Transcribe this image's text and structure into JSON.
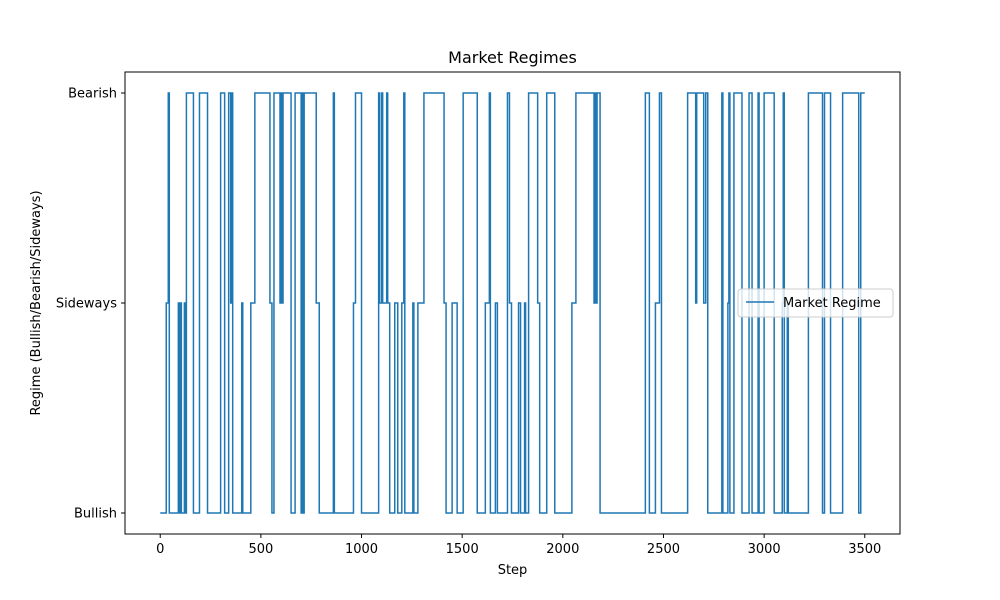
{
  "chart_data": {
    "type": "line",
    "title": "Market Regimes",
    "xlabel": "Step",
    "ylabel": "Regime (Bullish/Bearish/Sideways)",
    "xlim": [
      -175,
      3675
    ],
    "ylim": [
      -0.1,
      2.1
    ],
    "xticks": [
      0,
      500,
      1000,
      1500,
      2000,
      2500,
      3000,
      3500
    ],
    "xtick_labels": [
      "0",
      "500",
      "1000",
      "1500",
      "2000",
      "2500",
      "3000",
      "3500"
    ],
    "yticks": [
      0,
      1,
      2
    ],
    "ytick_labels": [
      "Bullish",
      "Sideways",
      "Bearish"
    ],
    "grid": false,
    "legend": {
      "position": "center-right",
      "entries": [
        "Market Regime"
      ]
    },
    "series": [
      {
        "name": "Market Regime",
        "color": "#1f77b4",
        "step_changes": [
          [
            0,
            0
          ],
          [
            30,
            1
          ],
          [
            40,
            2
          ],
          [
            45,
            0
          ],
          [
            90,
            1
          ],
          [
            95,
            0
          ],
          [
            100,
            1
          ],
          [
            105,
            0
          ],
          [
            120,
            1
          ],
          [
            125,
            0
          ],
          [
            130,
            2
          ],
          [
            165,
            0
          ],
          [
            195,
            2
          ],
          [
            235,
            0
          ],
          [
            300,
            2
          ],
          [
            320,
            0
          ],
          [
            340,
            2
          ],
          [
            350,
            1
          ],
          [
            355,
            2
          ],
          [
            360,
            0
          ],
          [
            405,
            1
          ],
          [
            410,
            0
          ],
          [
            450,
            1
          ],
          [
            470,
            2
          ],
          [
            545,
            1
          ],
          [
            555,
            0
          ],
          [
            565,
            2
          ],
          [
            595,
            1
          ],
          [
            600,
            2
          ],
          [
            605,
            1
          ],
          [
            610,
            2
          ],
          [
            650,
            0
          ],
          [
            670,
            2
          ],
          [
            700,
            0
          ],
          [
            705,
            2
          ],
          [
            710,
            0
          ],
          [
            715,
            2
          ],
          [
            775,
            1
          ],
          [
            790,
            0
          ],
          [
            860,
            2
          ],
          [
            865,
            0
          ],
          [
            960,
            1
          ],
          [
            970,
            2
          ],
          [
            1000,
            0
          ],
          [
            1085,
            2
          ],
          [
            1090,
            1
          ],
          [
            1100,
            2
          ],
          [
            1105,
            1
          ],
          [
            1125,
            2
          ],
          [
            1130,
            1
          ],
          [
            1140,
            0
          ],
          [
            1165,
            1
          ],
          [
            1180,
            0
          ],
          [
            1200,
            1
          ],
          [
            1210,
            2
          ],
          [
            1215,
            0
          ],
          [
            1255,
            1
          ],
          [
            1260,
            0
          ],
          [
            1280,
            1
          ],
          [
            1310,
            2
          ],
          [
            1410,
            1
          ],
          [
            1420,
            0
          ],
          [
            1450,
            1
          ],
          [
            1475,
            0
          ],
          [
            1505,
            2
          ],
          [
            1575,
            0
          ],
          [
            1615,
            1
          ],
          [
            1635,
            2
          ],
          [
            1640,
            0
          ],
          [
            1665,
            1
          ],
          [
            1675,
            0
          ],
          [
            1725,
            2
          ],
          [
            1735,
            1
          ],
          [
            1745,
            0
          ],
          [
            1780,
            1
          ],
          [
            1790,
            0
          ],
          [
            1810,
            1
          ],
          [
            1815,
            0
          ],
          [
            1830,
            2
          ],
          [
            1875,
            1
          ],
          [
            1885,
            0
          ],
          [
            1920,
            2
          ],
          [
            1960,
            0
          ],
          [
            2045,
            1
          ],
          [
            2065,
            2
          ],
          [
            2155,
            1
          ],
          [
            2160,
            2
          ],
          [
            2165,
            1
          ],
          [
            2170,
            2
          ],
          [
            2185,
            0
          ],
          [
            2410,
            2
          ],
          [
            2430,
            0
          ],
          [
            2460,
            1
          ],
          [
            2480,
            2
          ],
          [
            2490,
            0
          ],
          [
            2620,
            2
          ],
          [
            2660,
            1
          ],
          [
            2665,
            2
          ],
          [
            2700,
            1
          ],
          [
            2710,
            2
          ],
          [
            2720,
            0
          ],
          [
            2790,
            2
          ],
          [
            2795,
            0
          ],
          [
            2820,
            1
          ],
          [
            2825,
            2
          ],
          [
            2830,
            0
          ],
          [
            2850,
            2
          ],
          [
            2890,
            0
          ],
          [
            2925,
            2
          ],
          [
            2940,
            0
          ],
          [
            2970,
            2
          ],
          [
            2975,
            0
          ],
          [
            3000,
            2
          ],
          [
            3050,
            0
          ],
          [
            3090,
            1
          ],
          [
            3095,
            2
          ],
          [
            3100,
            0
          ],
          [
            3115,
            1
          ],
          [
            3120,
            0
          ],
          [
            3220,
            2
          ],
          [
            3290,
            0
          ],
          [
            3300,
            2
          ],
          [
            3330,
            0
          ],
          [
            3390,
            2
          ],
          [
            3470,
            0
          ],
          [
            3480,
            2
          ],
          [
            3500,
            2
          ]
        ]
      }
    ]
  }
}
